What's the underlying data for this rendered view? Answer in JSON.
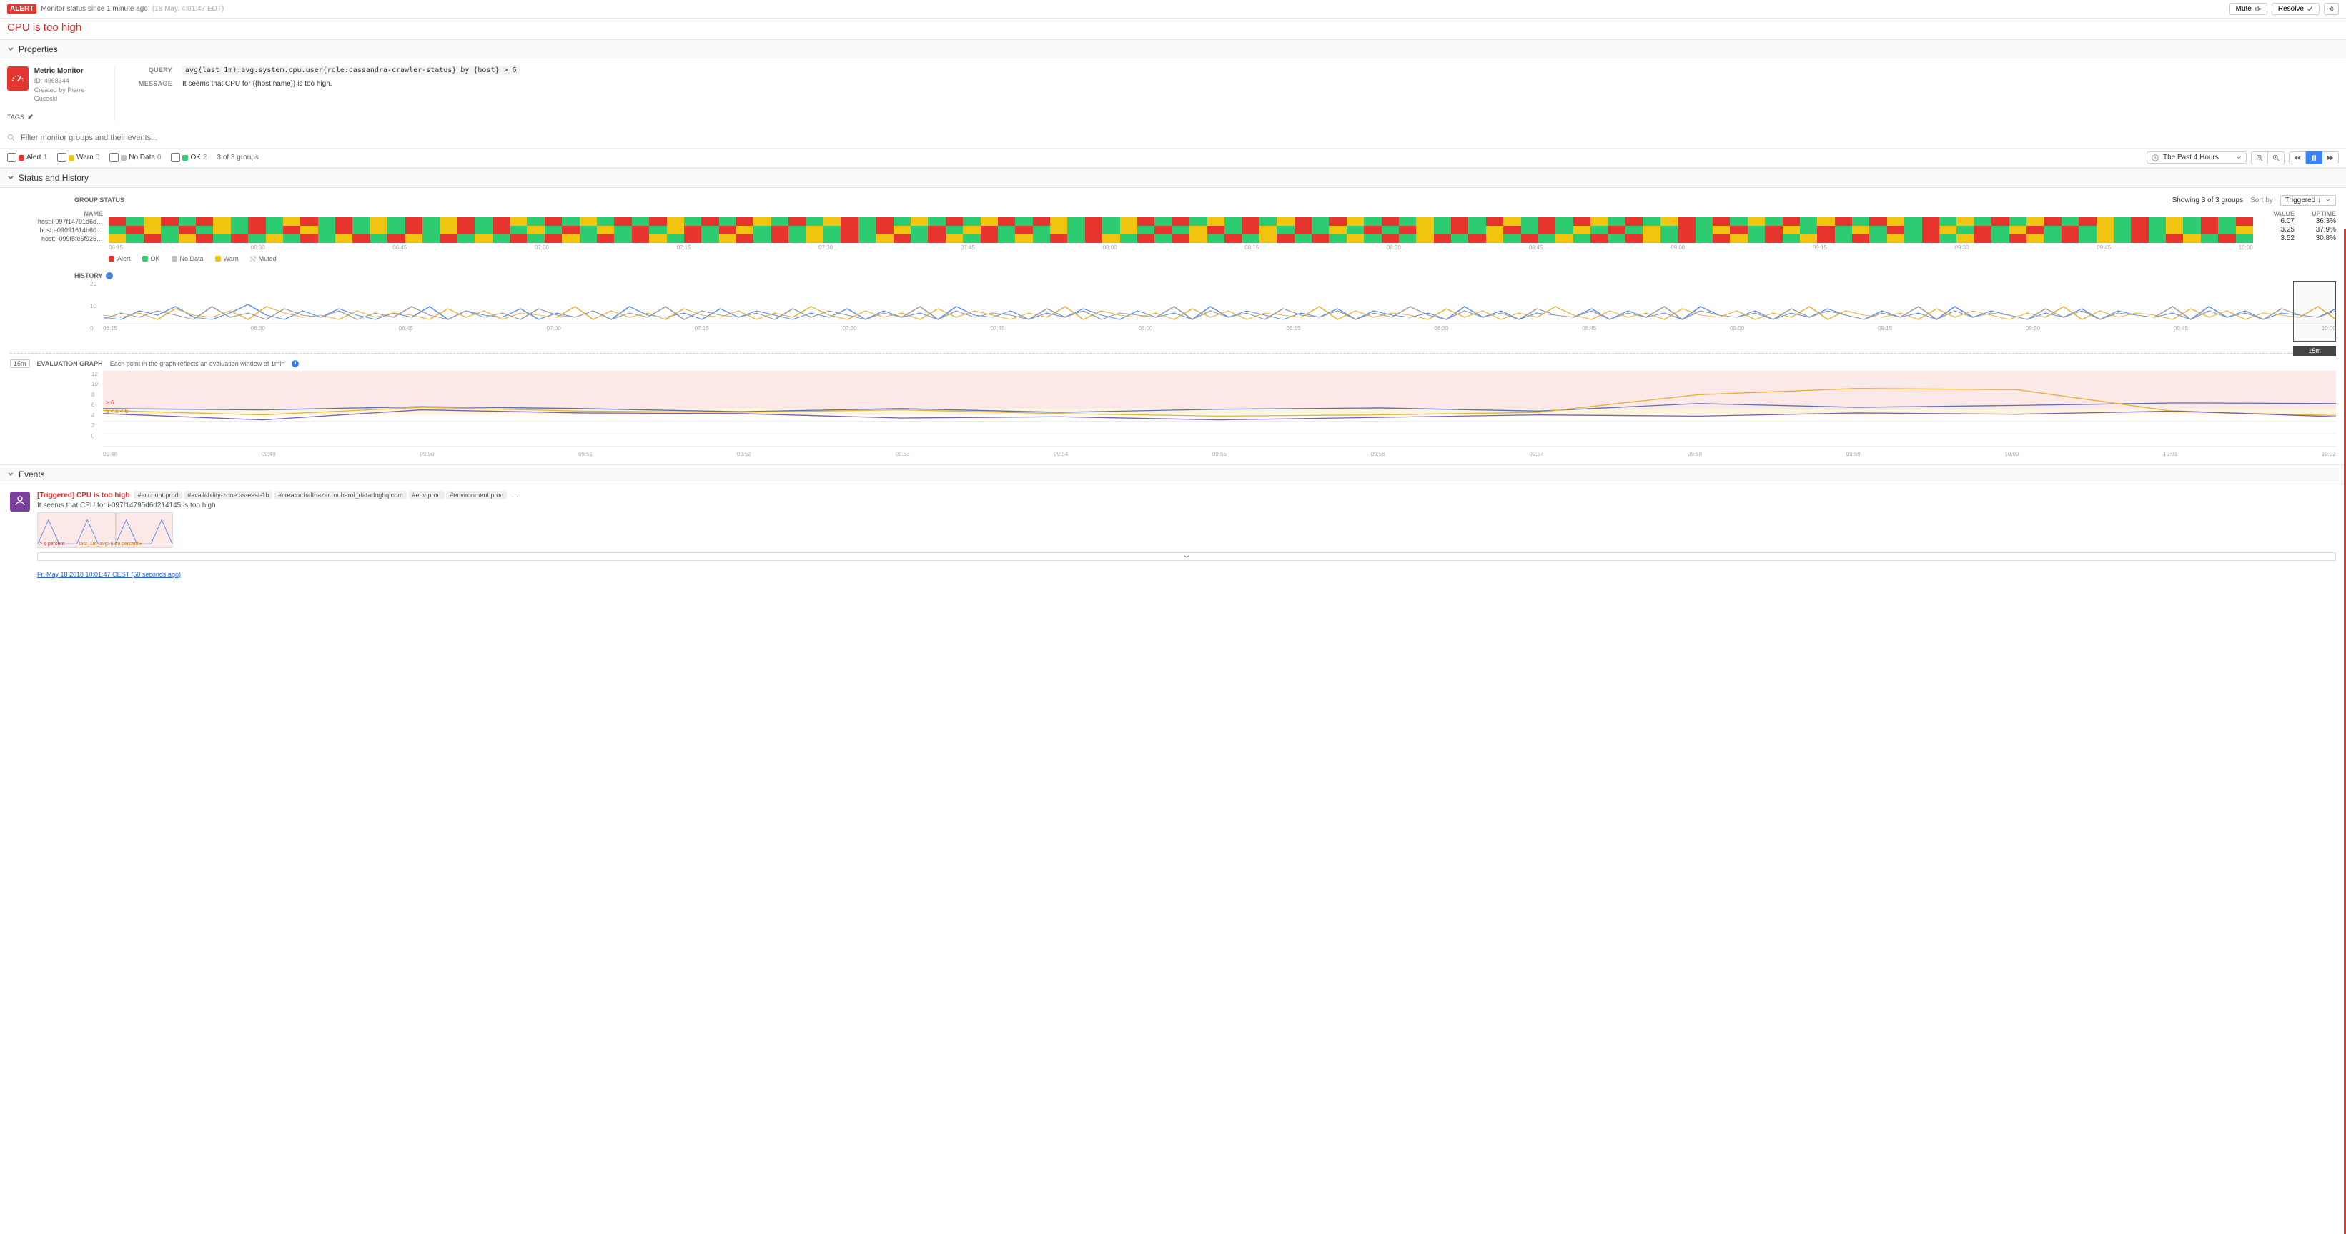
{
  "header": {
    "badge": "ALERT",
    "status_text": "Monitor status since 1 minute ago",
    "status_time": "(18 May, 4:01:47 EDT)",
    "mute_btn": "Mute",
    "resolve_btn": "Resolve"
  },
  "title": "CPU is too high",
  "sections": {
    "properties": "Properties",
    "status_history": "Status and History",
    "events": "Events"
  },
  "monitor_card": {
    "title": "Metric Monitor",
    "id_label": "ID: 4968344",
    "creator": "Created by Pierre Guceski",
    "tags_label": "TAGS"
  },
  "props": {
    "query_label": "QUERY",
    "query": "avg(last_1m):avg:system.cpu.user{role:cassandra-crawler-status} by {host} > 6",
    "message_label": "MESSAGE",
    "message": "It seems that CPU for {{host.name}} is too high."
  },
  "filter": {
    "placeholder": "Filter monitor groups and their events..."
  },
  "status_counts": {
    "alert_label": "Alert",
    "alert_n": "1",
    "warn_label": "Warn",
    "warn_n": "0",
    "nodata_label": "No Data",
    "nodata_n": "0",
    "ok_label": "OK",
    "ok_n": "2",
    "summary": "3 of 3 groups",
    "time_range": "The Past 4 Hours"
  },
  "colors": {
    "alert": "#e6342e",
    "ok": "#2ecc71",
    "warn": "#f1c40f",
    "nodata": "#bdbdbd",
    "muted_stripe": "#cfcfcf",
    "line1": "#5b8def",
    "line2": "#e5b23d",
    "line3": "#9b9b9b",
    "eval_line1": "#5b6fb8",
    "eval_line2": "#e5b23d",
    "eval_line3": "#7a5fb8",
    "eval_alert_band": "#fde8e8",
    "eval_warn_band": "#fdf4dc"
  },
  "group_status": {
    "heading": "GROUP STATUS",
    "showing": "Showing 3 of 3 groups",
    "sort_label": "Sort by",
    "sort_value": "Triggered ↓",
    "col_name": "NAME",
    "col_value": "VALUE",
    "col_uptime": "UPTIME",
    "rows": [
      {
        "name": "host:i-097f14791d6d…",
        "value": "6.07",
        "uptime": "36.3%"
      },
      {
        "name": "host:i-09091614b60…",
        "value": "3.25",
        "uptime": "37.9%"
      },
      {
        "name": "host:i-099f5fe6f926…",
        "value": "3.52",
        "uptime": "30.8%"
      }
    ],
    "axis": [
      "06:15",
      "06:30",
      "06:45",
      "07:00",
      "07:15",
      "07:30",
      "07:45",
      "08:00",
      "08:15",
      "08:30",
      "08:45",
      "09:00",
      "09:15",
      "09:30",
      "09:45",
      "10:00"
    ],
    "legend": [
      "Alert",
      "OK",
      "No Data",
      "Warn",
      "Muted"
    ],
    "bar_segments": [
      [
        1,
        2,
        3,
        1,
        2,
        1,
        3,
        2,
        1,
        2,
        3,
        1,
        2,
        1,
        2,
        3,
        2,
        1,
        2,
        3,
        1,
        2,
        1,
        3,
        2,
        1,
        2,
        3,
        2,
        1,
        2,
        1,
        3,
        2,
        1,
        2,
        1,
        3,
        2,
        1,
        2,
        3,
        1,
        2,
        1,
        2,
        3,
        2,
        1,
        2,
        3,
        1,
        2,
        1,
        3,
        2,
        1,
        2,
        3,
        1,
        2,
        1,
        2,
        3,
        2,
        1,
        2,
        3,
        1,
        2,
        1,
        3,
        2,
        1,
        2,
        3,
        2,
        1,
        2,
        1,
        3,
        2,
        1,
        2,
        1,
        3,
        2,
        1,
        2,
        3,
        1,
        2,
        1,
        2,
        3,
        2,
        1,
        2,
        3,
        1,
        2,
        1,
        3,
        2,
        1,
        2,
        3,
        2,
        1,
        2,
        3,
        1,
        2,
        1,
        3,
        2,
        1,
        2,
        3,
        2,
        1,
        2,
        1
      ],
      [
        2,
        1,
        3,
        2,
        1,
        2,
        3,
        2,
        1,
        2,
        1,
        3,
        2,
        1,
        2,
        3,
        2,
        1,
        2,
        3,
        1,
        2,
        1,
        2,
        3,
        2,
        1,
        2,
        3,
        2,
        1,
        2,
        3,
        1,
        2,
        1,
        3,
        2,
        1,
        2,
        3,
        2,
        1,
        2,
        1,
        3,
        2,
        1,
        2,
        3,
        1,
        2,
        1,
        2,
        3,
        2,
        1,
        2,
        3,
        2,
        1,
        2,
        3,
        1,
        2,
        1,
        3,
        2,
        1,
        2,
        3,
        2,
        1,
        2,
        1,
        3,
        2,
        1,
        2,
        3,
        1,
        2,
        1,
        2,
        3,
        2,
        1,
        2,
        3,
        2,
        1,
        2,
        3,
        1,
        2,
        1,
        3,
        2,
        1,
        2,
        3,
        2,
        1,
        2,
        1,
        3,
        2,
        1,
        2,
        3,
        1,
        2,
        1,
        2,
        3,
        2,
        1,
        2,
        3,
        2,
        1,
        2,
        3
      ],
      [
        3,
        2,
        1,
        2,
        3,
        1,
        2,
        1,
        2,
        3,
        2,
        1,
        2,
        3,
        1,
        2,
        1,
        3,
        2,
        1,
        2,
        3,
        2,
        1,
        2,
        1,
        3,
        2,
        1,
        2,
        1,
        3,
        2,
        1,
        2,
        3,
        1,
        2,
        1,
        2,
        3,
        2,
        1,
        2,
        3,
        1,
        2,
        1,
        3,
        2,
        1,
        2,
        3,
        2,
        1,
        2,
        1,
        3,
        2,
        1,
        2,
        1,
        3,
        2,
        1,
        2,
        3,
        1,
        2,
        1,
        2,
        3,
        2,
        1,
        2,
        3,
        1,
        2,
        1,
        3,
        2,
        1,
        2,
        3,
        2,
        1,
        2,
        1,
        3,
        2,
        1,
        2,
        1,
        3,
        2,
        1,
        2,
        3,
        1,
        2,
        1,
        2,
        3,
        2,
        1,
        2,
        3,
        1,
        2,
        1,
        3,
        2,
        1,
        2,
        3,
        2,
        1,
        2,
        1,
        3,
        2,
        1,
        2
      ]
    ]
  },
  "history": {
    "label": "HISTORY",
    "yticks": [
      "20",
      "10",
      "0"
    ],
    "overlay_label": "15m",
    "series": [
      [
        3,
        2,
        6,
        4,
        8,
        3,
        2,
        5,
        9,
        4,
        2,
        6,
        3,
        7,
        4,
        2,
        5,
        3,
        8,
        2,
        6,
        4,
        3,
        7,
        2,
        5,
        3,
        6,
        2,
        8,
        4,
        3,
        5,
        2,
        7,
        3,
        6,
        4,
        2,
        5,
        3,
        7,
        2,
        6,
        3,
        5,
        2,
        8,
        4,
        3,
        6,
        2,
        5,
        3,
        7,
        4,
        2,
        6,
        3,
        5,
        2,
        8,
        3,
        6,
        4,
        2,
        5,
        3,
        7,
        2,
        6,
        4,
        3,
        5,
        2,
        8,
        3,
        6,
        2,
        5,
        4,
        3,
        7,
        2,
        6,
        3,
        5,
        2,
        8,
        4,
        3,
        6,
        2,
        5,
        3,
        7,
        4,
        2,
        6,
        3,
        5,
        2,
        8,
        3,
        6,
        4,
        2,
        5,
        3,
        7,
        2,
        6,
        4,
        3,
        5,
        2,
        8,
        3,
        6,
        2,
        5,
        4,
        3,
        7
      ],
      [
        4,
        3,
        5,
        2,
        7,
        4,
        3,
        6,
        2,
        8,
        5,
        3,
        4,
        2,
        6,
        3,
        5,
        4,
        2,
        7,
        3,
        6,
        2,
        5,
        4,
        3,
        8,
        2,
        6,
        3,
        5,
        2,
        7,
        4,
        3,
        6,
        2,
        5,
        3,
        8,
        4,
        2,
        6,
        3,
        5,
        2,
        7,
        3,
        6,
        4,
        2,
        5,
        3,
        8,
        2,
        6,
        4,
        3,
        5,
        2,
        7,
        3,
        6,
        2,
        5,
        4,
        3,
        8,
        2,
        6,
        3,
        5,
        4,
        2,
        7,
        3,
        6,
        2,
        5,
        3,
        8,
        4,
        2,
        6,
        3,
        5,
        2,
        7,
        4,
        3,
        6,
        2,
        5,
        3,
        8,
        2,
        6,
        4,
        3,
        5,
        2,
        7,
        3,
        6,
        4,
        2,
        5,
        3,
        8,
        2,
        6,
        3,
        5,
        4,
        2,
        7,
        3,
        6,
        2,
        5,
        4,
        3,
        8,
        2
      ],
      [
        2,
        5,
        3,
        6,
        4,
        2,
        8,
        3,
        5,
        2,
        7,
        4,
        3,
        6,
        2,
        5,
        3,
        8,
        4,
        2,
        6,
        3,
        5,
        2,
        7,
        4,
        3,
        6,
        2,
        5,
        3,
        8,
        2,
        6,
        4,
        3,
        5,
        2,
        7,
        3,
        6,
        4,
        2,
        5,
        3,
        8,
        2,
        6,
        3,
        5,
        4,
        2,
        7,
        3,
        6,
        2,
        5,
        4,
        3,
        8,
        2,
        6,
        3,
        5,
        2,
        7,
        4,
        3,
        6,
        2,
        5,
        3,
        8,
        4,
        2,
        6,
        3,
        5,
        2,
        7,
        4,
        3,
        6,
        2,
        5,
        3,
        8,
        2,
        6,
        4,
        3,
        5,
        2,
        7,
        3,
        6,
        4,
        2,
        5,
        3,
        8,
        2,
        6,
        3,
        5,
        4,
        2,
        7,
        3,
        6,
        2,
        5,
        4,
        3,
        8,
        2,
        6,
        3,
        5,
        2,
        7,
        4,
        3,
        6
      ]
    ],
    "ymax": 20
  },
  "eval": {
    "badge": "15m",
    "title": "EVALUATION GRAPH",
    "desc": "Each point in the graph reflects an evaluation window of 1min",
    "yticks": [
      "12",
      "10",
      "8",
      "6",
      "4",
      "2",
      "0"
    ],
    "threshold_alert": "> 6",
    "threshold_warn": "5 < x < 6",
    "xaxis": [
      "09:48",
      "09:49",
      "09:50",
      "09:51",
      "09:52",
      "09:53",
      "09:54",
      "09:55",
      "09:56",
      "09:57",
      "09:58",
      "09:59",
      "10:00",
      "10:01",
      "10:02"
    ],
    "ymax": 12,
    "alert_level": 6,
    "warn_level": 5,
    "series": [
      [
        6.0,
        5.8,
        6.3,
        6.0,
        5.5,
        6.0,
        5.4,
        5.9,
        6.1,
        5.6,
        6.8,
        6.2,
        6.5,
        6.9,
        6.8
      ],
      [
        5.7,
        5.0,
        6.2,
        5.6,
        5.4,
        5.8,
        5.2,
        4.8,
        5.0,
        5.4,
        8.2,
        9.2,
        9.0,
        5.5,
        4.9
      ],
      [
        5.2,
        4.2,
        5.8,
        5.3,
        5.2,
        4.5,
        4.7,
        4.2,
        4.6,
        5.0,
        4.8,
        5.3,
        5.1,
        5.6,
        4.7
      ]
    ]
  },
  "event": {
    "title": "[Triggered] CPU is too high",
    "tags": [
      "#account:prod",
      "#availability-zone:us-east-1b",
      "#creator:balthazar.rouberol_datadoghq.com",
      "#env:prod",
      "#environment:prod"
    ],
    "more": "…",
    "message": "It seems that CPU for i-097f14795d6d214145 is too high.",
    "thumb_label1": "> 6 percent",
    "thumb_label2": "last_1m_avg: 6.59 percent ▸",
    "timestamp": "Fri May 18 2018 10:01:47 CEST (50 seconds ago)"
  }
}
